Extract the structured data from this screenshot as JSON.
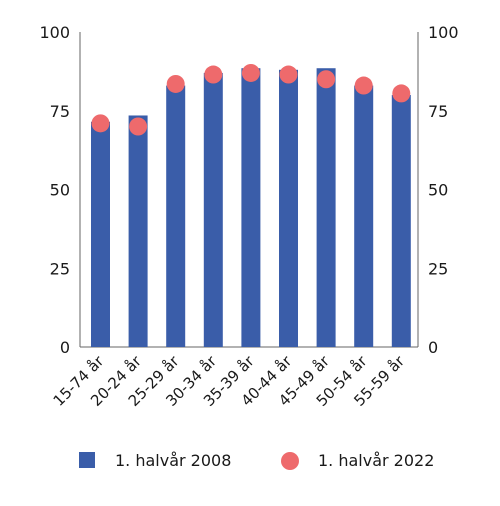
{
  "chart_data": {
    "type": "bar",
    "categories": [
      "15-74 år",
      "20-24 år",
      "25-29 år",
      "30-34 år",
      "35-39 år",
      "40-44 år",
      "45-49 år",
      "50-54 år",
      "55-59 år"
    ],
    "series": [
      {
        "name": "1. halvår 2008",
        "mark": "bar",
        "values": [
          71.5,
          73.5,
          83,
          87,
          88.5,
          88,
          88.5,
          83,
          80
        ]
      },
      {
        "name": "1. halvår 2022",
        "mark": "point",
        "values": [
          71,
          70,
          83.5,
          86.5,
          87,
          86.5,
          85,
          83,
          80.5
        ]
      }
    ],
    "ylim": [
      0,
      100
    ],
    "yticks": [
      0,
      25,
      50,
      75,
      100
    ],
    "y_axes": "left and right, identical scale",
    "grid": false,
    "legend_position": "bottom",
    "colors": {
      "bar": "#3a5da9",
      "point": "#ee6a6c",
      "axis": "#666666"
    }
  }
}
